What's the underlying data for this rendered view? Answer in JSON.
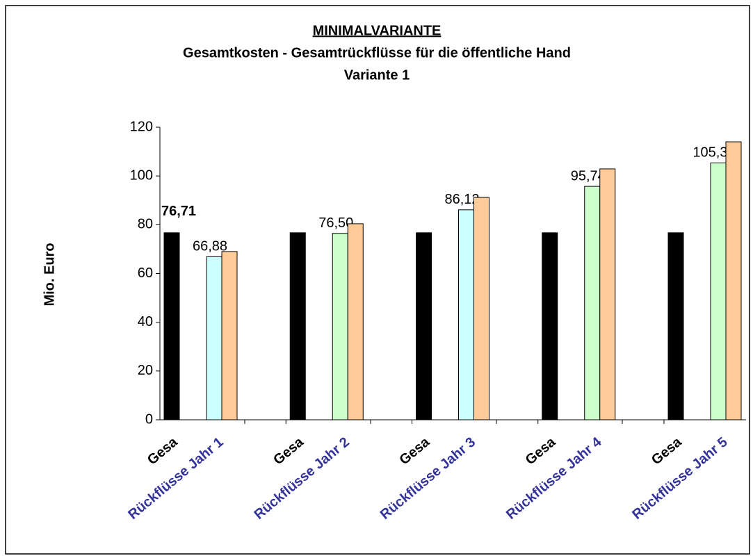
{
  "chart_data": {
    "type": "bar",
    "title": "MINIMALVARIANTE",
    "subtitle": "Gesamtkosten - Gesamtrückflüsse für die öffentliche Hand",
    "subtitle2": "Variante 1",
    "ylabel": "Mio. Euro",
    "categories": [
      "Gesa",
      "Rückflüsse Jahr 1",
      "Gesa",
      "Rückflüsse Jahr 2",
      "Gesa",
      "Rückflüsse Jahr 3",
      "Gesa",
      "Rückflüsse Jahr 4",
      "Gesa",
      "Rückflüsse Jahr 5"
    ],
    "series": [
      {
        "color": "#000000",
        "values": [
          76.71,
          null,
          76.71,
          null,
          76.71,
          null,
          76.71,
          null,
          76.71,
          null
        ],
        "value_labels": [
          "76,71",
          null,
          null,
          null,
          null,
          null,
          null,
          null,
          null,
          null
        ]
      },
      {
        "colors": [
          null,
          "#ccffff",
          null,
          "#ccffcc",
          null,
          "#ccffff",
          null,
          "#ccffcc",
          null,
          "#ccffcc"
        ],
        "values": [
          null,
          66.88,
          null,
          76.5,
          null,
          86.12,
          null,
          95.74,
          null,
          105.36
        ],
        "value_labels": [
          null,
          "66,88",
          null,
          "76,50",
          null,
          "86,12",
          null,
          "95,74",
          null,
          "105,36"
        ]
      },
      {
        "color": "#ffcc99",
        "values": [
          null,
          69,
          null,
          80.4,
          null,
          91.2,
          null,
          102.9,
          null,
          114
        ]
      }
    ],
    "ylim": [
      0,
      120
    ],
    "yticks": [
      0,
      20,
      40,
      60,
      80,
      100,
      120
    ],
    "grid": false
  }
}
